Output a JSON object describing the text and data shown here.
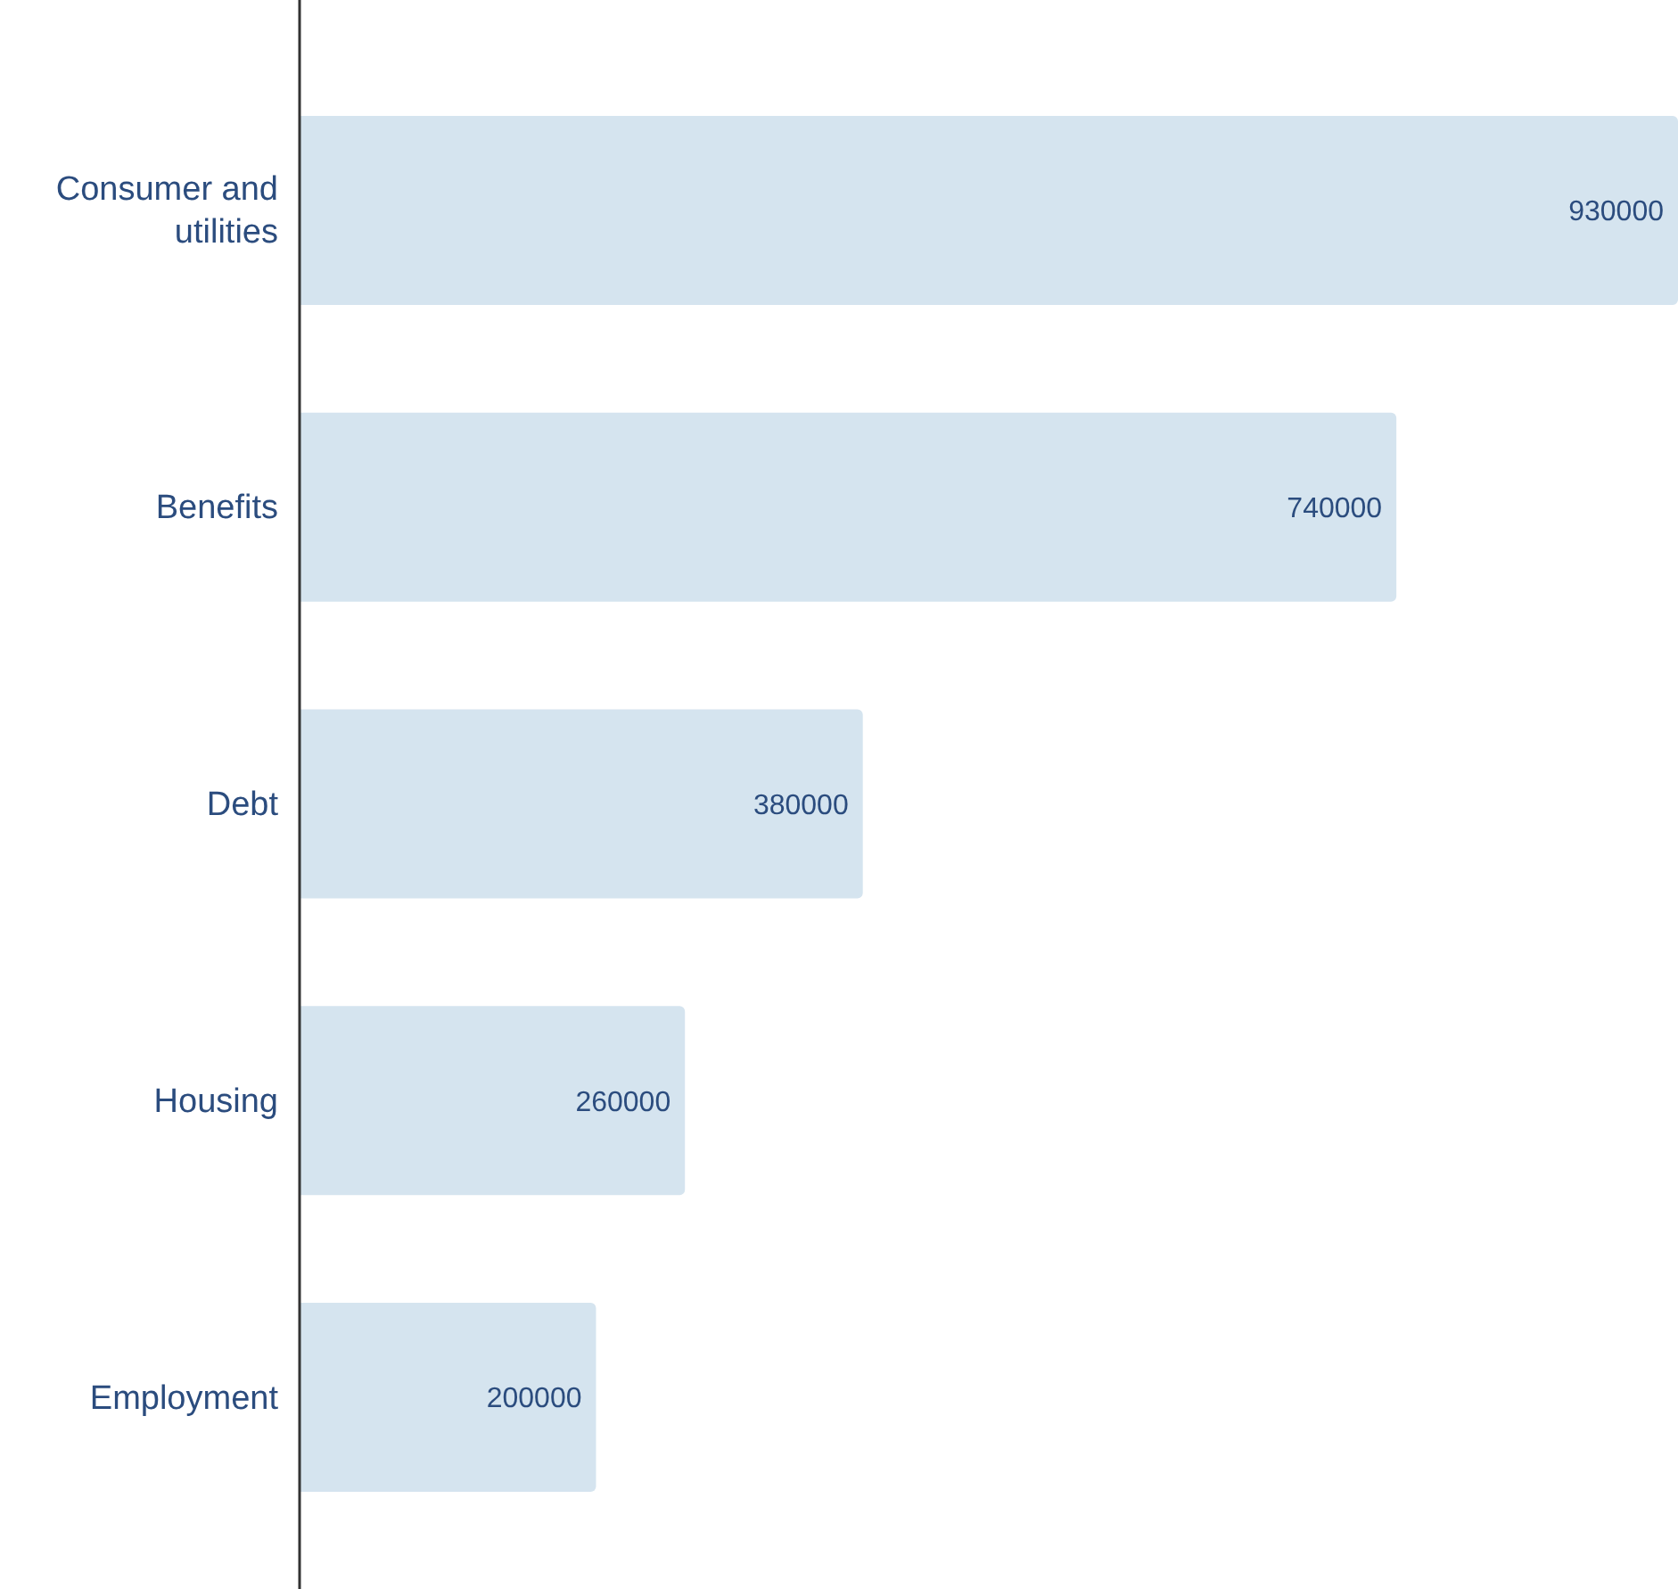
{
  "chart_data": {
    "type": "bar",
    "orientation": "horizontal",
    "categories": [
      "Consumer and utilities",
      "Benefits",
      "Debt",
      "Housing",
      "Employment"
    ],
    "values": [
      930000,
      740000,
      380000,
      260000,
      200000
    ],
    "color": "#d5e4ef",
    "data_labels": true,
    "tick_labels": "y"
  }
}
